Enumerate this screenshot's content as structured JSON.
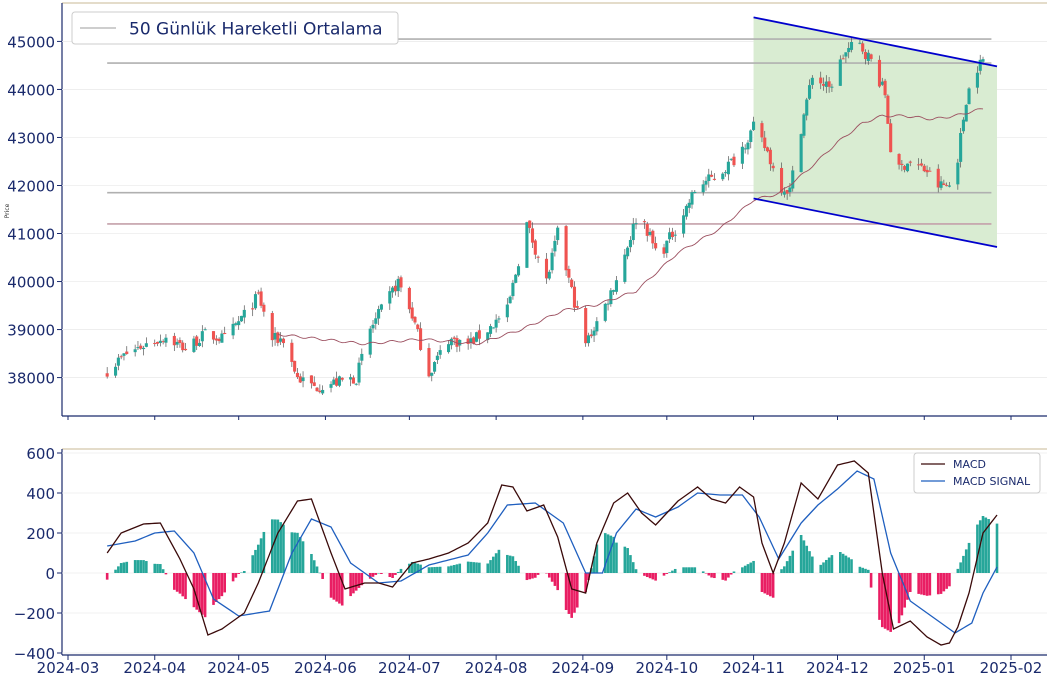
{
  "chart_data": [
    {
      "type": "candlestick",
      "ylabel": "Price",
      "ylim": [
        37200,
        45800
      ],
      "yticks": [
        "38000",
        "39000",
        "40000",
        "41000",
        "42000",
        "43000",
        "44000",
        "45000"
      ],
      "legend": {
        "label": "50 Günlük Hareketli Ortalama",
        "placement": "top-left"
      },
      "horizontal_levels": [
        45050,
        44550,
        41850,
        41200
      ],
      "channel": {
        "start_date": "2024-11-01",
        "end_date": "2025-01-27",
        "upper": [
          45500,
          44480
        ],
        "lower": [
          41730,
          40720
        ],
        "fill": "#d9ecd2"
      },
      "colors": {
        "up": "#26a69a",
        "down": "#ef5350",
        "ma": "#9c5060",
        "channel_line": "#0000cc",
        "level": "#b0b0b0"
      },
      "anchors": [
        [
          "2024-03-15",
          38150
        ],
        [
          "2024-03-22",
          38500
        ],
        [
          "2024-03-29",
          38700
        ],
        [
          "2024-04-05",
          38850
        ],
        [
          "2024-04-12",
          38600
        ],
        [
          "2024-04-19",
          38900
        ],
        [
          "2024-04-26",
          38800
        ],
        [
          "2024-05-03",
          39300
        ],
        [
          "2024-05-08",
          39700
        ],
        [
          "2024-05-13",
          38800
        ],
        [
          "2024-05-17",
          38800
        ],
        [
          "2024-05-22",
          38000
        ],
        [
          "2024-05-28",
          37800
        ],
        [
          "2024-06-05",
          37900
        ],
        [
          "2024-06-12",
          38000
        ],
        [
          "2024-06-17",
          39000
        ],
        [
          "2024-06-22",
          39500
        ],
        [
          "2024-06-27",
          40000
        ],
        [
          "2024-07-02",
          39300
        ],
        [
          "2024-07-08",
          38100
        ],
        [
          "2024-07-15",
          38800
        ],
        [
          "2024-07-22",
          38700
        ],
        [
          "2024-07-29",
          39000
        ],
        [
          "2024-08-05",
          39400
        ],
        [
          "2024-08-12",
          41200
        ],
        [
          "2024-08-19",
          40000
        ],
        [
          "2024-08-23",
          41000
        ],
        [
          "2024-08-28",
          39800
        ],
        [
          "2024-09-02",
          38700
        ],
        [
          "2024-09-09",
          39500
        ],
        [
          "2024-09-14",
          40200
        ],
        [
          "2024-09-21",
          41500
        ],
        [
          "2024-09-28",
          40500
        ],
        [
          "2024-10-05",
          41200
        ],
        [
          "2024-10-12",
          42000
        ],
        [
          "2024-10-19",
          42200
        ],
        [
          "2024-10-26",
          42600
        ],
        [
          "2024-11-01",
          43200
        ],
        [
          "2024-11-06",
          42700
        ],
        [
          "2024-11-10",
          42000
        ],
        [
          "2024-11-14",
          41900
        ],
        [
          "2024-11-18",
          43200
        ],
        [
          "2024-11-22",
          44300
        ],
        [
          "2024-11-28",
          44000
        ],
        [
          "2024-12-03",
          44700
        ],
        [
          "2024-12-08",
          45000
        ],
        [
          "2024-12-13",
          44600
        ],
        [
          "2024-12-18",
          43900
        ],
        [
          "2024-12-21",
          42200
        ],
        [
          "2024-12-26",
          42500
        ],
        [
          "2025-01-02",
          42300
        ],
        [
          "2025-01-06",
          42000
        ],
        [
          "2025-01-10",
          42000
        ],
        [
          "2025-01-13",
          42600
        ],
        [
          "2025-01-16",
          43800
        ],
        [
          "2025-01-19",
          44400
        ],
        [
          "2025-01-22",
          44600
        ]
      ],
      "ma_points": [
        [
          "2024-05-15",
          38900
        ],
        [
          "2024-06-15",
          38700
        ],
        [
          "2024-07-05",
          38800
        ],
        [
          "2024-07-25",
          38700
        ],
        [
          "2024-08-10",
          39000
        ],
        [
          "2024-08-25",
          39400
        ],
        [
          "2024-09-05",
          39500
        ],
        [
          "2024-09-20",
          39800
        ],
        [
          "2024-10-05",
          40600
        ],
        [
          "2024-10-20",
          41100
        ],
        [
          "2024-11-01",
          41700
        ],
        [
          "2024-11-10",
          41830
        ],
        [
          "2024-11-20",
          42300
        ],
        [
          "2024-12-01",
          42900
        ],
        [
          "2024-12-10",
          43300
        ],
        [
          "2024-12-17",
          43450
        ],
        [
          "2024-12-25",
          43450
        ],
        [
          "2025-01-04",
          43380
        ],
        [
          "2025-01-12",
          43450
        ],
        [
          "2025-01-22",
          43600
        ]
      ]
    },
    {
      "type": "line",
      "ylim": [
        -410,
        620
      ],
      "yticks": [
        "600",
        "400",
        "200",
        "0",
        "−200",
        "−400"
      ],
      "xticks": [
        "2024-03",
        "2024-04",
        "2024-05",
        "2024-06",
        "2024-07",
        "2024-08",
        "2024-09",
        "2024-10",
        "2024-11",
        "2024-12",
        "2025-01",
        "2025-02"
      ],
      "series": [
        {
          "name": "MACD",
          "color": "#3a0a0a"
        },
        {
          "name": "MACD SIGNAL",
          "color": "#1f5fbf"
        }
      ],
      "histogram_colors": {
        "positive": "#26a69a",
        "negative": "#e91e63"
      },
      "macd": [
        [
          "2024-03-15",
          100
        ],
        [
          "2024-03-20",
          200
        ],
        [
          "2024-03-28",
          245
        ],
        [
          "2024-04-03",
          250
        ],
        [
          "2024-04-10",
          70
        ],
        [
          "2024-04-15",
          -80
        ],
        [
          "2024-04-20",
          -310
        ],
        [
          "2024-04-25",
          -280
        ],
        [
          "2024-05-03",
          -200
        ],
        [
          "2024-05-08",
          -50
        ],
        [
          "2024-05-15",
          200
        ],
        [
          "2024-05-22",
          360
        ],
        [
          "2024-05-27",
          370
        ],
        [
          "2024-06-03",
          100
        ],
        [
          "2024-06-08",
          -80
        ],
        [
          "2024-06-15",
          -50
        ],
        [
          "2024-06-20",
          -50
        ],
        [
          "2024-06-25",
          -70
        ],
        [
          "2024-07-02",
          50
        ],
        [
          "2024-07-08",
          70
        ],
        [
          "2024-07-15",
          100
        ],
        [
          "2024-07-22",
          150
        ],
        [
          "2024-07-29",
          250
        ],
        [
          "2024-08-03",
          440
        ],
        [
          "2024-08-07",
          430
        ],
        [
          "2024-08-12",
          310
        ],
        [
          "2024-08-18",
          340
        ],
        [
          "2024-08-23",
          180
        ],
        [
          "2024-08-28",
          -80
        ],
        [
          "2024-09-02",
          -100
        ],
        [
          "2024-09-06",
          150
        ],
        [
          "2024-09-12",
          350
        ],
        [
          "2024-09-17",
          400
        ],
        [
          "2024-09-22",
          300
        ],
        [
          "2024-09-27",
          240
        ],
        [
          "2024-10-05",
          360
        ],
        [
          "2024-10-12",
          430
        ],
        [
          "2024-10-17",
          370
        ],
        [
          "2024-10-22",
          350
        ],
        [
          "2024-10-27",
          430
        ],
        [
          "2024-11-01",
          380
        ],
        [
          "2024-11-04",
          150
        ],
        [
          "2024-11-08",
          0
        ],
        [
          "2024-11-12",
          150
        ],
        [
          "2024-11-18",
          450
        ],
        [
          "2024-11-24",
          370
        ],
        [
          "2024-12-01",
          540
        ],
        [
          "2024-12-07",
          560
        ],
        [
          "2024-12-12",
          500
        ],
        [
          "2024-12-17",
          0
        ],
        [
          "2024-12-21",
          -280
        ],
        [
          "2024-12-27",
          -240
        ],
        [
          "2025-01-02",
          -320
        ],
        [
          "2025-01-07",
          -360
        ],
        [
          "2025-01-10",
          -350
        ],
        [
          "2025-01-13",
          -270
        ],
        [
          "2025-01-17",
          -100
        ],
        [
          "2025-01-22",
          200
        ],
        [
          "2025-01-27",
          290
        ]
      ],
      "signal": [
        [
          "2024-03-15",
          135
        ],
        [
          "2024-03-25",
          160
        ],
        [
          "2024-04-01",
          200
        ],
        [
          "2024-04-08",
          210
        ],
        [
          "2024-04-15",
          100
        ],
        [
          "2024-04-22",
          -130
        ],
        [
          "2024-05-01",
          -215
        ],
        [
          "2024-05-12",
          -190
        ],
        [
          "2024-05-20",
          100
        ],
        [
          "2024-05-27",
          270
        ],
        [
          "2024-06-03",
          230
        ],
        [
          "2024-06-10",
          50
        ],
        [
          "2024-06-20",
          -50
        ],
        [
          "2024-06-28",
          -40
        ],
        [
          "2024-07-08",
          40
        ],
        [
          "2024-07-22",
          90
        ],
        [
          "2024-07-29",
          200
        ],
        [
          "2024-08-05",
          340
        ],
        [
          "2024-08-15",
          350
        ],
        [
          "2024-08-25",
          250
        ],
        [
          "2024-09-02",
          0
        ],
        [
          "2024-09-08",
          0
        ],
        [
          "2024-09-13",
          200
        ],
        [
          "2024-09-20",
          320
        ],
        [
          "2024-09-27",
          280
        ],
        [
          "2024-10-05",
          330
        ],
        [
          "2024-10-12",
          400
        ],
        [
          "2024-10-20",
          390
        ],
        [
          "2024-10-28",
          390
        ],
        [
          "2024-11-03",
          280
        ],
        [
          "2024-11-10",
          70
        ],
        [
          "2024-11-18",
          250
        ],
        [
          "2024-11-24",
          340
        ],
        [
          "2024-12-01",
          420
        ],
        [
          "2024-12-08",
          510
        ],
        [
          "2024-12-14",
          470
        ],
        [
          "2024-12-20",
          100
        ],
        [
          "2024-12-27",
          -140
        ],
        [
          "2025-01-04",
          -220
        ],
        [
          "2025-01-12",
          -300
        ],
        [
          "2025-01-18",
          -250
        ],
        [
          "2025-01-22",
          -100
        ],
        [
          "2025-01-27",
          30
        ]
      ]
    }
  ]
}
